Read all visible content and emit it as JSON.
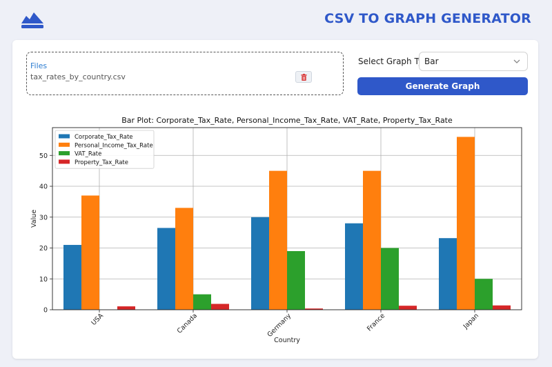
{
  "header": {
    "title": "CSV TO GRAPH GENERATOR",
    "logo_icon": "mountain-logo-icon",
    "accent": "#2f58c9"
  },
  "upload": {
    "label": "Files",
    "file_name": "tax_rates_by_country.csv",
    "delete_icon": "trash-icon"
  },
  "controls": {
    "select_label": "Select Graph Type",
    "select_value": "Bar",
    "generate_label": "Generate Graph"
  },
  "chart_data": {
    "type": "bar",
    "title": "Bar Plot: Corporate_Tax_Rate, Personal_Income_Tax_Rate, VAT_Rate, Property_Tax_Rate",
    "xlabel": "Country",
    "ylabel": "Value",
    "categories": [
      "USA",
      "Canada",
      "Germany",
      "France",
      "Japan"
    ],
    "ylim": [
      0,
      59
    ],
    "yticks": [
      0,
      10,
      20,
      30,
      40,
      50
    ],
    "grid": true,
    "legend_position": "top-left",
    "series": [
      {
        "name": "Corporate_Tax_Rate",
        "color": "#1f77b4",
        "values": [
          21,
          26.5,
          30,
          28,
          23.2
        ]
      },
      {
        "name": "Personal_Income_Tax_Rate",
        "color": "#ff7f0e",
        "values": [
          37,
          33,
          45,
          45,
          56
        ]
      },
      {
        "name": "VAT_Rate",
        "color": "#2ca02c",
        "values": [
          0,
          5,
          19,
          20,
          10
        ]
      },
      {
        "name": "Property_Tax_Rate",
        "color": "#d62728",
        "values": [
          1.1,
          1.9,
          0.4,
          1.3,
          1.4
        ]
      }
    ]
  }
}
